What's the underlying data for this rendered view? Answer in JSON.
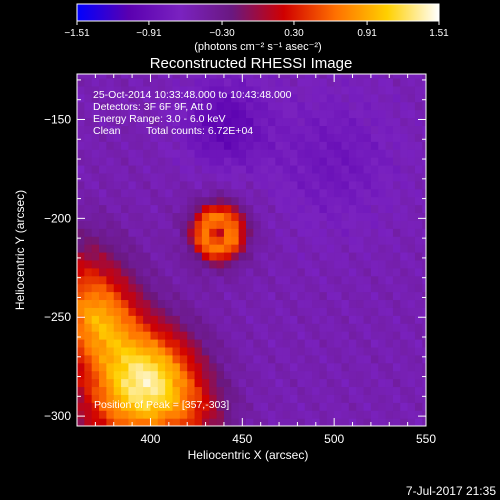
{
  "chart_data": {
    "type": "heatmap",
    "title": "Reconstructed RHESSI Image",
    "xlabel": "Heliocentric X (arcsec)",
    "ylabel": "Heliocentric Y (arcsec)",
    "xlim": [
      360,
      550
    ],
    "ylim": [
      -305,
      -127
    ],
    "x_ticks": [
      400,
      450,
      500,
      550
    ],
    "x_tick_labels": [
      "400",
      "450",
      "500",
      "550"
    ],
    "y_ticks": [
      -150,
      -200,
      -250,
      -300
    ],
    "y_tick_labels": [
      "−150",
      "−200",
      "−250",
      "−300"
    ],
    "colorbar": {
      "ticks": [
        -1.51,
        -0.91,
        -0.3,
        0.3,
        0.91,
        1.51
      ],
      "tick_labels": [
        "−1.51",
        "−0.91",
        "−0.30",
        "0.30",
        "0.91",
        "1.51"
      ],
      "unit_label": "(photons cm⁻² s⁻¹ asec⁻²)",
      "colors": [
        "#0000ff",
        "#5a00b0",
        "#7a22c0",
        "#6a1880",
        "#d00000",
        "#ff7000",
        "#ffd000",
        "#ffffff"
      ]
    },
    "peak": [
      357,
      -303
    ],
    "features": [
      {
        "kind": "peak",
        "x": 372,
        "y": -252,
        "value": 1.25
      },
      {
        "kind": "peak",
        "x": 402,
        "y": -280,
        "value": 1.35
      },
      {
        "kind": "ring",
        "x": 437,
        "y": -207,
        "value": 0.42
      },
      {
        "kind": "negative",
        "x": 440,
        "y": -152,
        "value": -0.9
      }
    ]
  },
  "annotations": {
    "time_range": "25-Oct-2014 10:33:48.000 to 10:43:48.000",
    "detectors": "Detectors: 3F 6F 9F, Att 0",
    "energy_range": "Energy Range: 3.0 - 6.0 keV",
    "clean": "Clean",
    "total_counts": "Total counts: 6.72E+04",
    "peak_position": "Position of Peak = [357,-303]"
  },
  "footer": {
    "date_stamp": "7-Jul-2017 21:35"
  }
}
